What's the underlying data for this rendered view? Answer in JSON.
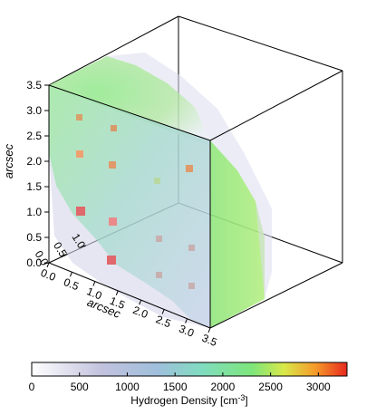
{
  "chart_data": {
    "type": "heatmap",
    "subtype": "3d-volume-render",
    "y_axis": {
      "label": "arcsec",
      "ticks": [
        "0.0",
        "0.5",
        "1.0",
        "1.5",
        "2.0",
        "2.5",
        "3.0",
        "3.5"
      ],
      "range": [
        0,
        3.5
      ]
    },
    "x_axis": {
      "label": "arcsec",
      "ticks": [
        "0.0",
        "0.5",
        "1.0",
        "1.5",
        "2.0",
        "2.5",
        "3.0",
        "3.5"
      ],
      "range": [
        0,
        3.5
      ]
    },
    "z_axis": {
      "label": "",
      "ticks": [
        "0.0",
        "0.5",
        "1.0"
      ],
      "range": [
        0,
        3.5
      ]
    },
    "colorbar": {
      "title": "Hydrogen Density [cm-3]",
      "title_prefix": "Hydrogen Density [cm",
      "title_sup": "-3",
      "title_suffix": "]",
      "ticks": [
        "0",
        "500",
        "1000",
        "1500",
        "2000",
        "2500",
        "3000"
      ],
      "range": [
        0,
        3300
      ],
      "colors": [
        "#ffffff",
        "#b7b7d9",
        "#8fb6d8",
        "#7fdcb9",
        "#7ee67a",
        "#cfe84a",
        "#f59a2a",
        "#e8281e"
      ]
    },
    "front_face_peaks": [
      {
        "x": 1.0,
        "y": 1.5,
        "density": 3000
      },
      {
        "x": 1.5,
        "y": 2.5,
        "density": 1900
      },
      {
        "x": 1.0,
        "y": 3.0,
        "density": 2500
      }
    ]
  }
}
